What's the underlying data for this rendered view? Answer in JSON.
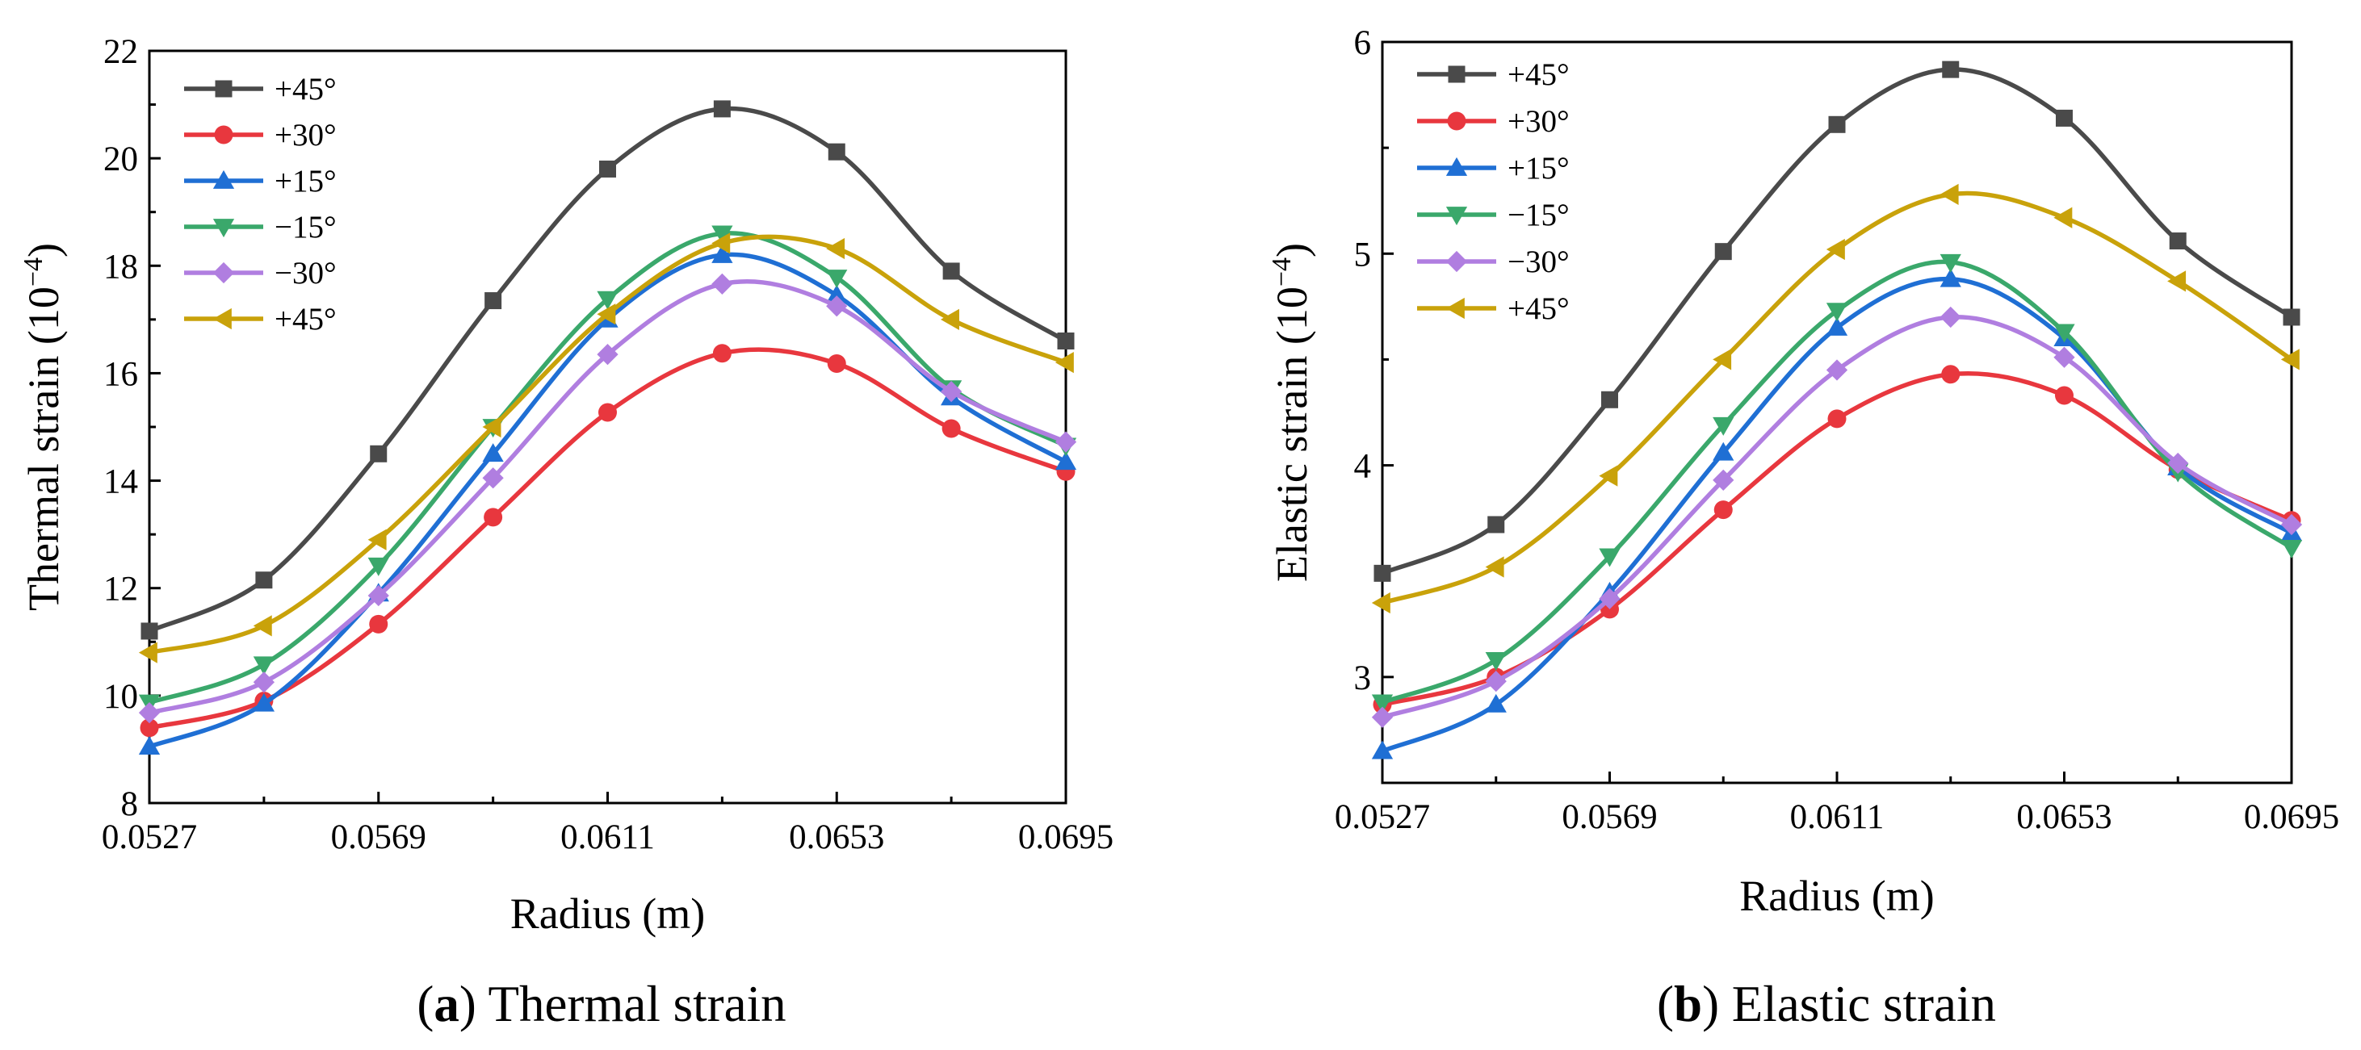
{
  "chart_data": [
    {
      "type": "line",
      "panel": "a",
      "caption_paren_open": "(",
      "caption_letter": "a",
      "caption_rest": ") Thermal strain",
      "xlabel": "Radius (m)",
      "ylabel": "Thermal strain (10",
      "ylabel_exp": "−4",
      "ylabel_close": ")",
      "xlim": [
        0.0527,
        0.0695
      ],
      "ylim": [
        8,
        22
      ],
      "xticks": [
        0.0527,
        0.0569,
        0.0611,
        0.0653,
        0.0695
      ],
      "xtick_labels": [
        "0.0527",
        "0.0569",
        "0.0611",
        "0.0653",
        "0.0695"
      ],
      "yticks": [
        8,
        10,
        12,
        14,
        16,
        18,
        20,
        22
      ],
      "ytick_labels": [
        "8",
        "10",
        "12",
        "14",
        "16",
        "18",
        "20",
        "22"
      ],
      "x": [
        0.0527,
        0.0548,
        0.0569,
        0.059,
        0.0611,
        0.0632,
        0.0653,
        0.0674,
        0.0695
      ],
      "legend_position": "top-left",
      "series": [
        {
          "name": "+45°",
          "color": "#4a4a4a",
          "marker": "square",
          "values": [
            11.2,
            12.15,
            14.5,
            17.35,
            19.8,
            20.92,
            20.12,
            17.9,
            16.6
          ]
        },
        {
          "name": "+30°",
          "color": "#e8373e",
          "marker": "circle",
          "values": [
            9.4,
            9.9,
            11.33,
            13.32,
            15.27,
            16.37,
            16.18,
            14.97,
            14.17
          ]
        },
        {
          "name": "+15°",
          "color": "#1f6fd4",
          "marker": "triangle-up",
          "values": [
            9.05,
            9.85,
            11.9,
            14.5,
            17.0,
            18.2,
            17.45,
            15.55,
            14.35
          ]
        },
        {
          "name": "−15°",
          "color": "#3aa86b",
          "marker": "triangle-down",
          "values": [
            9.87,
            10.58,
            12.42,
            15.0,
            17.38,
            18.6,
            17.78,
            15.72,
            14.65
          ]
        },
        {
          "name": "−30°",
          "color": "#b07ee0",
          "marker": "diamond",
          "values": [
            9.68,
            10.25,
            11.86,
            14.05,
            16.35,
            17.66,
            17.25,
            15.66,
            14.72
          ]
        },
        {
          "name": "+45°",
          "color": "#c9a20a",
          "marker": "triangle-left",
          "values": [
            10.8,
            11.3,
            12.9,
            15.0,
            17.1,
            18.42,
            18.32,
            17.0,
            16.2
          ]
        }
      ]
    },
    {
      "type": "line",
      "panel": "b",
      "caption_paren_open": "(",
      "caption_letter": "b",
      "caption_rest": ") Elastic strain",
      "xlabel": "Radius (m)",
      "ylabel": "Elastic strain (10",
      "ylabel_exp": "−4",
      "ylabel_close": ")",
      "xlim": [
        0.0527,
        0.0695
      ],
      "ylim": [
        2.5,
        6
      ],
      "xticks": [
        0.0527,
        0.0569,
        0.0611,
        0.0653,
        0.0695
      ],
      "xtick_labels": [
        "0.0527",
        "0.0569",
        "0.0611",
        "0.0653",
        "0.0695"
      ],
      "yticks": [
        3,
        4,
        5,
        6
      ],
      "ytick_labels": [
        "3",
        "4",
        "5",
        "6"
      ],
      "x": [
        0.0527,
        0.0548,
        0.0569,
        0.059,
        0.0611,
        0.0632,
        0.0653,
        0.0674,
        0.0695
      ],
      "legend_position": "top-left",
      "series": [
        {
          "name": "+45°",
          "color": "#4a4a4a",
          "marker": "square",
          "values": [
            3.49,
            3.72,
            4.31,
            5.01,
            5.61,
            5.87,
            5.64,
            5.06,
            4.7
          ]
        },
        {
          "name": "+30°",
          "color": "#e8373e",
          "marker": "circle",
          "values": [
            2.87,
            3.0,
            3.32,
            3.79,
            4.22,
            4.43,
            4.33,
            3.98,
            3.74
          ]
        },
        {
          "name": "+15°",
          "color": "#1f6fd4",
          "marker": "triangle-up",
          "values": [
            2.65,
            2.87,
            3.4,
            4.06,
            4.65,
            4.88,
            4.6,
            3.99,
            3.68
          ]
        },
        {
          "name": "−15°",
          "color": "#3aa86b",
          "marker": "triangle-down",
          "values": [
            2.88,
            3.08,
            3.57,
            4.19,
            4.73,
            4.96,
            4.63,
            3.97,
            3.61
          ]
        },
        {
          "name": "−30°",
          "color": "#b07ee0",
          "marker": "diamond",
          "values": [
            2.81,
            2.98,
            3.37,
            3.93,
            4.45,
            4.7,
            4.51,
            4.01,
            3.72
          ]
        },
        {
          "name": "+45°",
          "color": "#c9a20a",
          "marker": "triangle-left",
          "values": [
            3.35,
            3.52,
            3.95,
            4.5,
            5.02,
            5.28,
            5.17,
            4.87,
            4.5
          ]
        }
      ]
    }
  ]
}
